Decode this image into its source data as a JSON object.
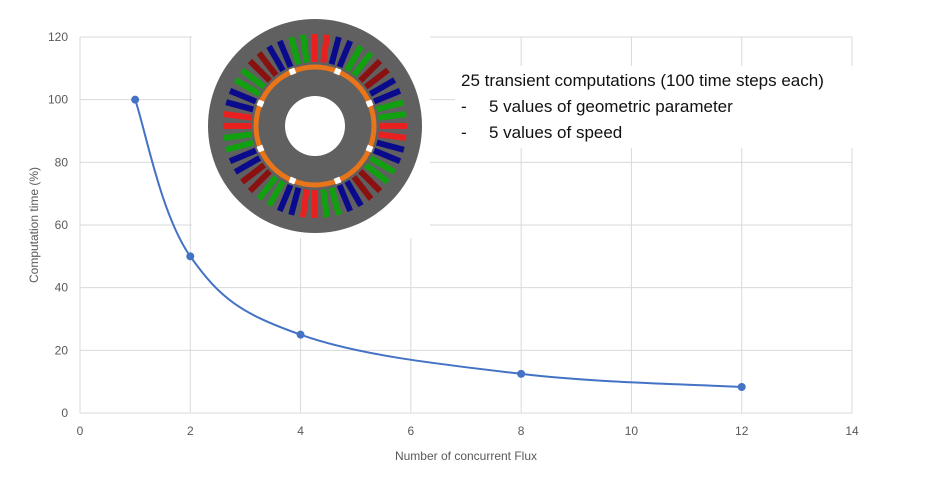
{
  "chart_data": {
    "type": "scatter",
    "x": [
      1,
      2,
      4,
      8,
      12
    ],
    "y": [
      100,
      50,
      25,
      12.5,
      8.3
    ],
    "smooth_line": true,
    "xlabel": "Number of concurrent Flux",
    "ylabel": "Computation time (%)",
    "xlim": [
      0,
      14
    ],
    "ylim": [
      0,
      120
    ],
    "xticks": [
      "0",
      "2",
      "4",
      "6",
      "8",
      "10",
      "12",
      "14"
    ],
    "yticks": [
      "0",
      "20",
      "40",
      "60",
      "80",
      "100",
      "120"
    ],
    "grid": true,
    "series_color": "#4472C4",
    "annotation": {
      "title": "25 transient computations (100 time steps each)",
      "bullets": [
        "5 values of geometric parameter",
        "5 values of speed"
      ],
      "dash": "-"
    },
    "inset_image": "motor cross-section with colored stator windings",
    "inset_colors": {
      "frame": "#606060",
      "rotor_ring": "#E8751A",
      "phase_a": "#E82020",
      "phase_b": "#10A010",
      "phase_c": "#0A0A8C",
      "phase_a_dark": "#8B1010",
      "hole": "#ffffff"
    }
  }
}
